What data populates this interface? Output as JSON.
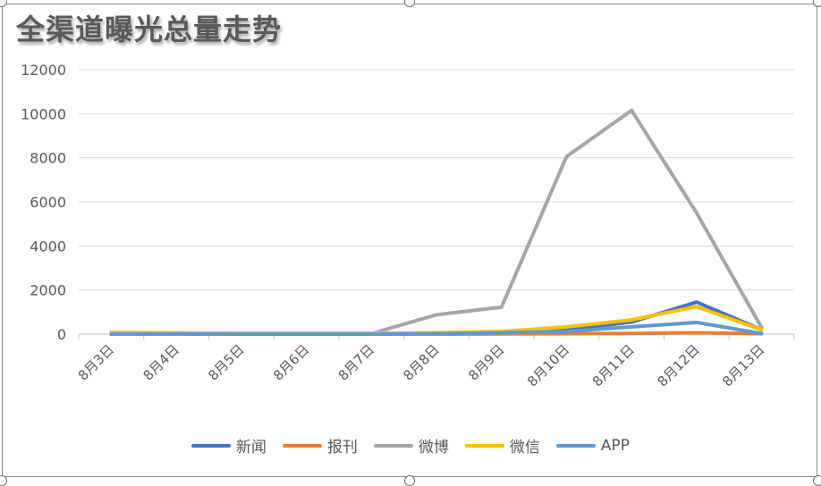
{
  "chart_data": {
    "type": "line",
    "title": "全渠道曝光总量走势",
    "categories": [
      "8月3日",
      "8月4日",
      "8月5日",
      "8月6日",
      "8月7日",
      "8月8日",
      "8月9日",
      "8月10日",
      "8月11日",
      "8月12日",
      "8月13日"
    ],
    "ylim": [
      0,
      12000
    ],
    "yticks": [
      0,
      2000,
      4000,
      6000,
      8000,
      10000,
      12000
    ],
    "grid": true,
    "legend_position": "bottom",
    "series": [
      {
        "name": "新闻",
        "color": "#4472C4",
        "values": [
          20,
          20,
          20,
          20,
          20,
          50,
          100,
          180,
          550,
          1450,
          200
        ]
      },
      {
        "name": "报刊",
        "color": "#ED7D31",
        "values": [
          0,
          0,
          0,
          0,
          0,
          0,
          10,
          20,
          30,
          60,
          20
        ]
      },
      {
        "name": "微博",
        "color": "#A5A5A5",
        "values": [
          0,
          0,
          0,
          0,
          20,
          880,
          1220,
          8060,
          10150,
          5500,
          300
        ]
      },
      {
        "name": "微信",
        "color": "#FFC000",
        "values": [
          80,
          60,
          40,
          40,
          40,
          60,
          120,
          330,
          650,
          1250,
          200
        ]
      },
      {
        "name": "APP",
        "color": "#5B9BD5",
        "values": [
          0,
          0,
          0,
          0,
          0,
          20,
          60,
          120,
          330,
          530,
          30
        ]
      }
    ]
  }
}
